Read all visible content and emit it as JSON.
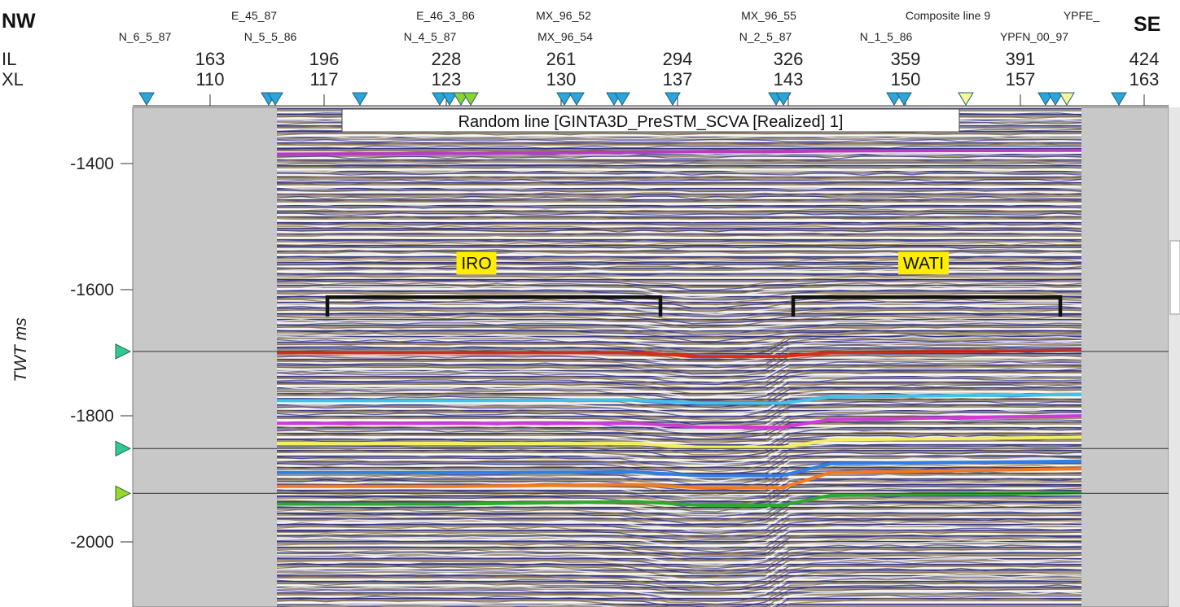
{
  "chart_data": {
    "type": "seismic-section",
    "title": "Random line [GINTA3D_PreSTM_SCVA [Realized] 1]",
    "direction_left": "NW",
    "direction_right": "SE",
    "ylabel": "TWT ms",
    "ylim": [
      -2110,
      -1300
    ],
    "yticks": [
      -1400,
      -1600,
      -1800,
      -2000
    ],
    "il_label": "IL",
    "xl_label": "XL",
    "il_values": [
      "163",
      "196",
      "228",
      "261",
      "294",
      "326",
      "359",
      "391",
      "424"
    ],
    "xl_values": [
      "110",
      "117",
      "123",
      "130",
      "137",
      "143",
      "150",
      "157",
      "163"
    ],
    "wells_upper": [
      "E_45_87",
      "E_46_3_86",
      "MX_96_52",
      "MX_96_55",
      "Composite line 9",
      "YPFE_"
    ],
    "wells_lower": [
      "N_6_5_87",
      "N_5_5_86",
      "N_4_5_87",
      "MX_96_54",
      "N_2_5_87",
      "N_1_5_86",
      "YPFN_00_97"
    ],
    "annotations": [
      {
        "text": "IRO",
        "twt": -1612
      },
      {
        "text": "WATI",
        "twt": -1612
      }
    ],
    "time_slices_ms": [
      -1698,
      -1852,
      -1923
    ],
    "horizons": [
      {
        "color": "#b83cc0",
        "twt": [
          -1385,
          -1384,
          -1382,
          -1381,
          -1381,
          -1380,
          -1379
        ]
      },
      {
        "color": "#e02a1a",
        "twt": [
          -1700,
          -1700,
          -1700,
          -1706,
          -1706,
          -1700,
          -1696
        ]
      },
      {
        "color": "#3fc3ea",
        "twt": [
          -1776,
          -1776,
          -1775,
          -1780,
          -1780,
          -1770,
          -1766
        ]
      },
      {
        "color": "#d23ad8",
        "twt": [
          -1812,
          -1812,
          -1812,
          -1818,
          -1818,
          -1806,
          -1800
        ]
      },
      {
        "color": "#f2ef60",
        "twt": [
          -1844,
          -1844,
          -1844,
          -1850,
          -1850,
          -1838,
          -1834
        ]
      },
      {
        "color": "#2f7fe6",
        "twt": [
          -1890,
          -1890,
          -1889,
          -1895,
          -1895,
          -1876,
          -1872
        ]
      },
      {
        "color": "#f07a22",
        "twt": [
          -1912,
          -1912,
          -1909,
          -1914,
          -1914,
          -1890,
          -1884
        ]
      },
      {
        "color": "#2ea82e",
        "twt": [
          -1940,
          -1940,
          -1936,
          -1942,
          -1942,
          -1926,
          -1922
        ]
      }
    ],
    "colors": {
      "marker_blue": "#2aa6dc",
      "marker_green": "#8bd42e",
      "marker_yellow": "#f5f59a",
      "slice_cyan": "#2ec89a",
      "slice_lime": "#9ad62e",
      "annotation_bg": "#ffee00",
      "panel_gray": "#c8c8c8"
    }
  }
}
